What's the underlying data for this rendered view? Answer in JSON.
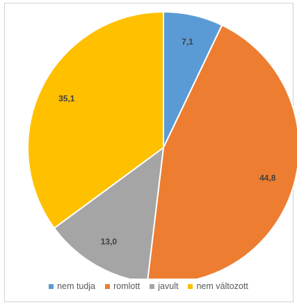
{
  "chart_data": {
    "type": "pie",
    "title": "",
    "start_angle_deg": 0,
    "direction": "clockwise",
    "legend_position": "bottom",
    "slices": [
      {
        "name": "nem tudja",
        "value": 7.1,
        "label": "7,1",
        "color": "#5B9BD5"
      },
      {
        "name": "romlott",
        "value": 44.8,
        "label": "44,8",
        "color": "#ED7D31"
      },
      {
        "name": "javult",
        "value": 13.0,
        "label": "13,0",
        "color": "#A5A5A5"
      },
      {
        "name": "nem változott",
        "value": 35.1,
        "label": "35,1",
        "color": "#FFC000"
      }
    ]
  }
}
